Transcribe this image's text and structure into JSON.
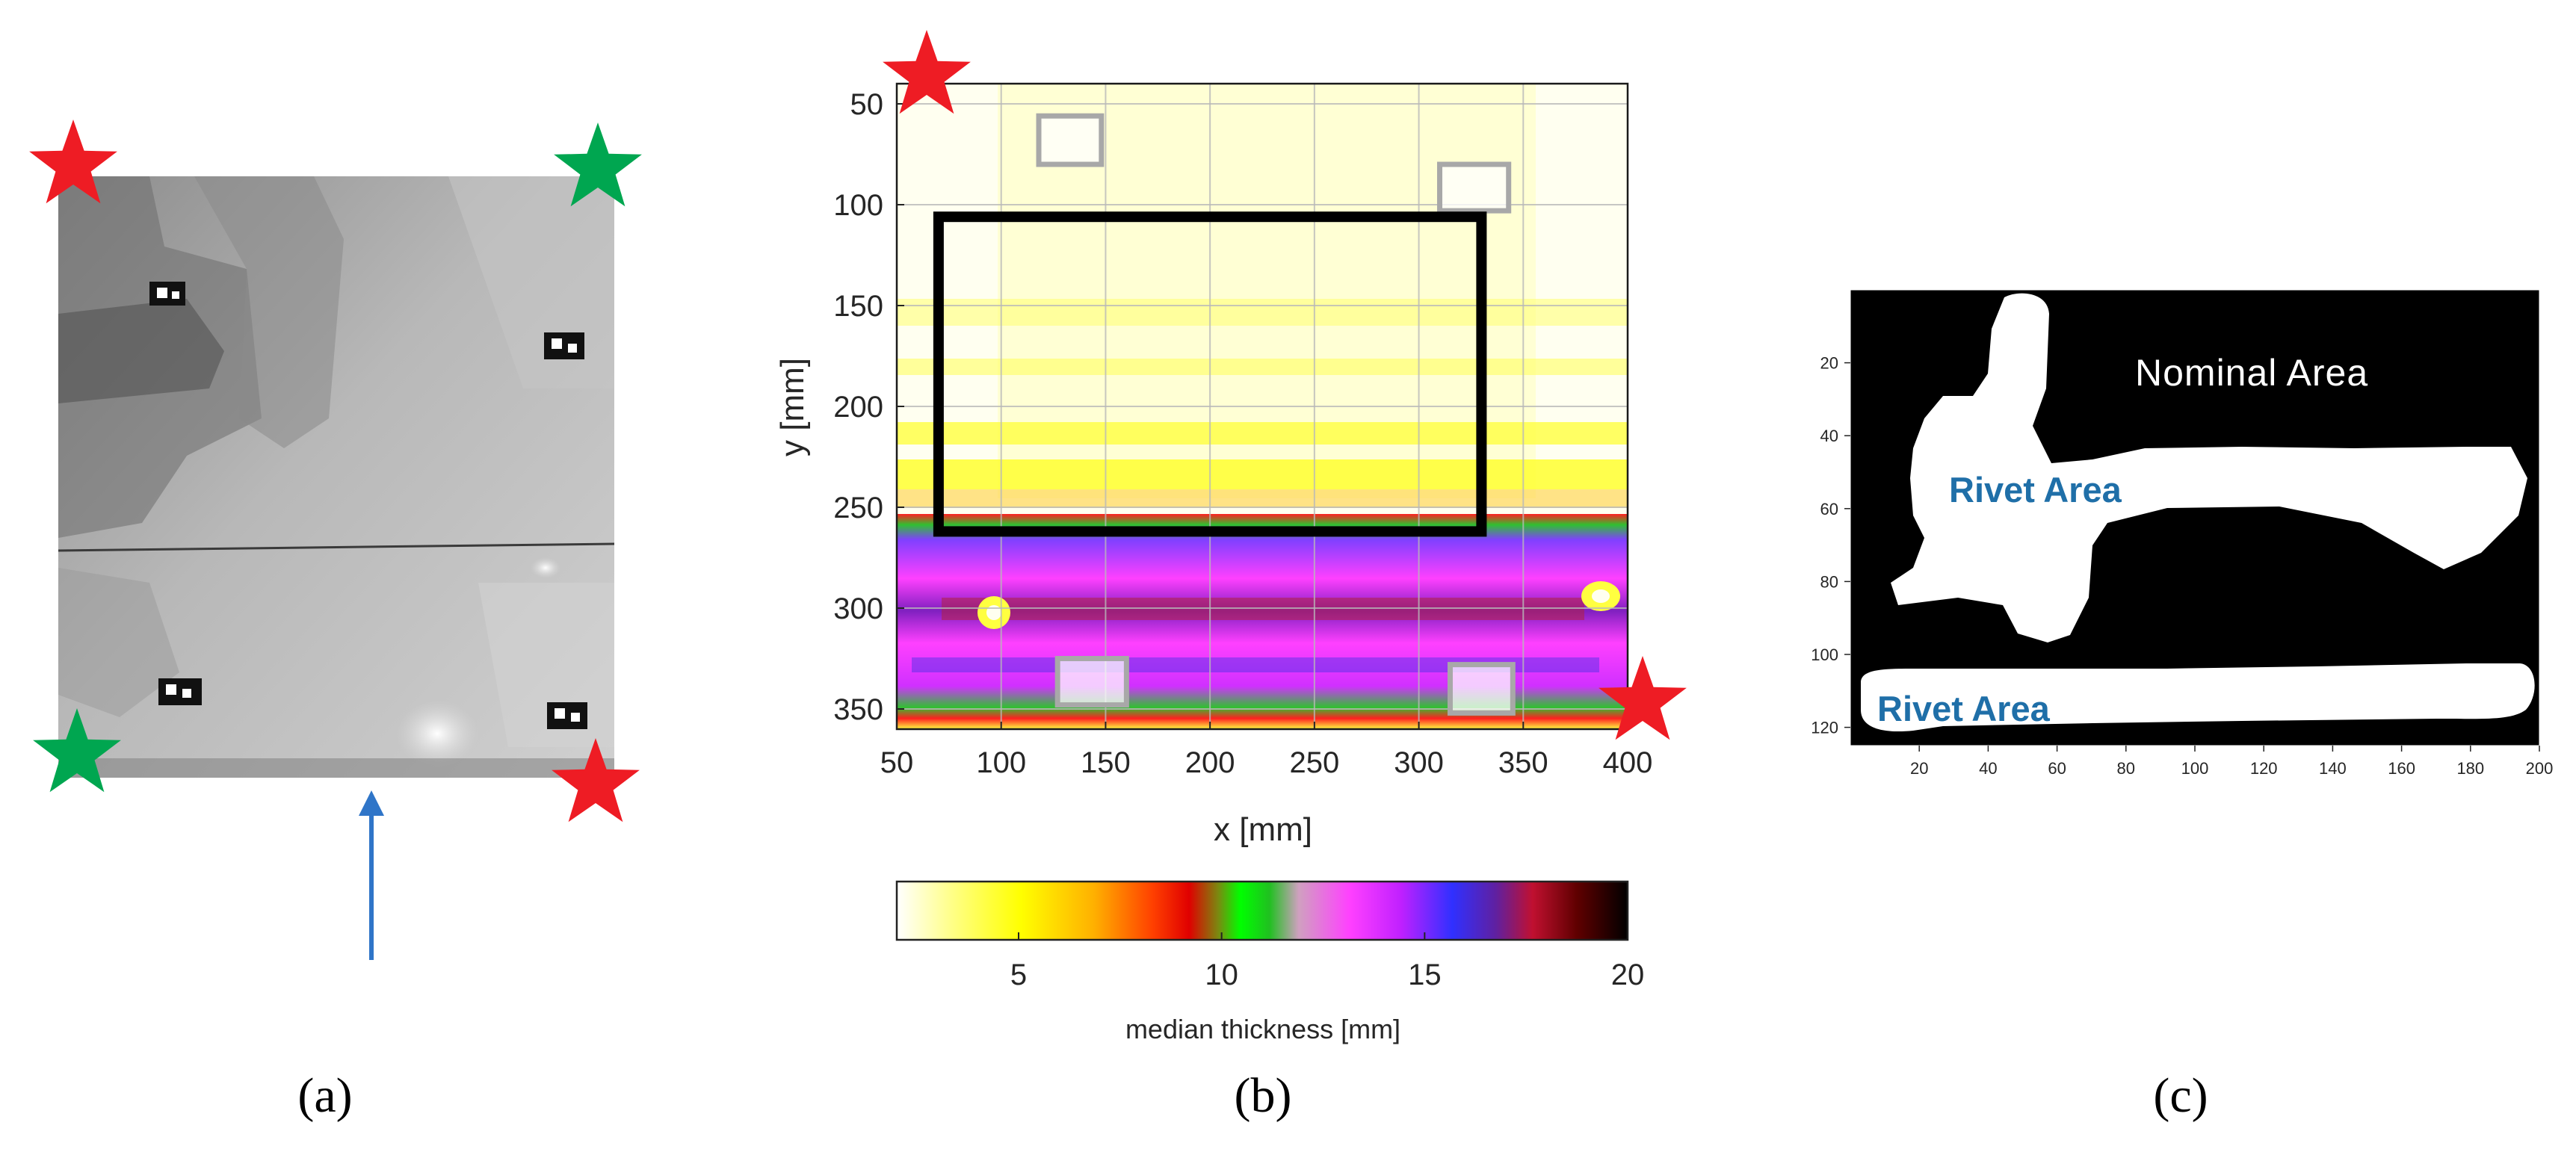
{
  "panel_a": {
    "caption": "(a)",
    "photo_description_markers": [
      "red-star",
      "green-star",
      "blue-arrow"
    ]
  },
  "panel_b": {
    "caption": "(b)",
    "chart_data": {
      "type": "heatmap",
      "title": "",
      "xlabel": "x [mm]",
      "ylabel": "y [mm]",
      "xlim": [
        50,
        400
      ],
      "ylim": [
        360,
        40
      ],
      "x_ticks": [
        50,
        100,
        150,
        200,
        250,
        300,
        350,
        400
      ],
      "y_ticks": [
        50,
        100,
        150,
        200,
        250,
        300,
        350
      ],
      "grid": true,
      "nominal_region_mm": {
        "x": [
          70,
          330
        ],
        "y": [
          106,
          262
        ]
      },
      "reference_boxes_mm": [
        {
          "x": [
            118,
            148
          ],
          "y": [
            56,
            80
          ]
        },
        {
          "x": [
            310,
            343
          ],
          "y": [
            80,
            103
          ]
        },
        {
          "x": [
            127,
            160
          ],
          "y": [
            325,
            348
          ]
        },
        {
          "x": [
            315,
            345
          ],
          "y": [
            328,
            352
          ]
        }
      ],
      "colorbar": {
        "label": "median thickness [mm]",
        "range": [
          2,
          20
        ],
        "ticks": [
          5,
          10,
          15,
          20
        ]
      }
    }
  },
  "panel_c": {
    "caption": "(c)",
    "chart_data": {
      "type": "heatmap",
      "xlim": [
        0,
        200
      ],
      "ylim": [
        125,
        0
      ],
      "x_ticks": [
        20,
        40,
        60,
        80,
        100,
        120,
        140,
        160,
        180,
        200
      ],
      "y_ticks": [
        20,
        40,
        60,
        80,
        100,
        120
      ],
      "labels": {
        "nominal": "Nominal Area",
        "rivet_upper": "Rivet Area",
        "rivet_lower": "Rivet Area"
      }
    }
  },
  "colors": {
    "star_red": "#ee1c24",
    "star_green": "#00a650",
    "arrow_blue": "#2f75c8",
    "rivet_label": "#1f6fa8"
  }
}
